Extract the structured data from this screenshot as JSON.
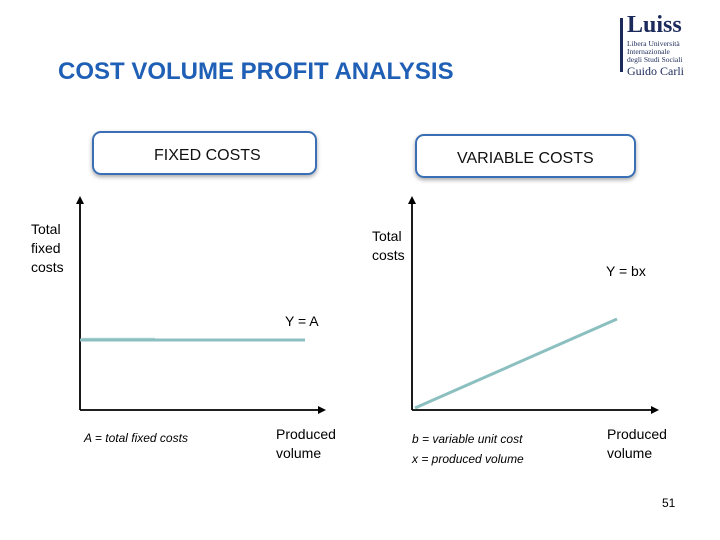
{
  "title": "COST VOLUME PROFIT ANALYSIS",
  "logo": {
    "name": "Luiss",
    "lines": [
      "Libera Università",
      "Internazionale",
      "degli Studi Sociali"
    ],
    "sub_big": "Guido Carli"
  },
  "boxes": {
    "fixed": "FIXED COSTS",
    "variable": "VARIABLE COSTS"
  },
  "left_chart": {
    "y_label_lines": [
      "Total",
      "fixed",
      "costs"
    ],
    "equation": "Y = A",
    "x_label_lines": [
      "Produced",
      "volume"
    ],
    "note": "A = total fixed costs",
    "line_color": "#8bbfc0"
  },
  "right_chart": {
    "y_label_lines": [
      "Total",
      "costs"
    ],
    "equation": "Y = bx",
    "x_label_lines": [
      "Produced",
      "volume"
    ],
    "note_lines": [
      "b = variable unit cost",
      "x = produced volume"
    ],
    "line_color": "#8bbfc0"
  },
  "page_number": "51"
}
